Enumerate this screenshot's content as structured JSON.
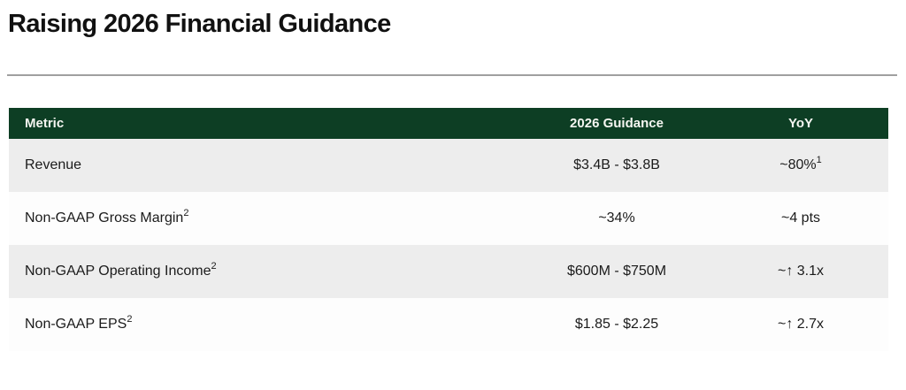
{
  "page": {
    "title": "Raising 2026 Financial Guidance"
  },
  "table": {
    "headers": [
      "Metric",
      "2026 Guidance",
      "YoY"
    ],
    "rows": [
      {
        "metric": "Revenue",
        "guidance": "$3.4B - $3.8B",
        "yoy": "~80%",
        "yoy_sup": "1"
      },
      {
        "metric": "Non-GAAP Gross Margin",
        "metric_sup": "2",
        "guidance": "~34%",
        "yoy": "~4 pts"
      },
      {
        "metric": "Non-GAAP Operating Income",
        "metric_sup": "2",
        "guidance": "$600M - $750M",
        "yoy": "~↑ 3.1x"
      },
      {
        "metric": "Non-GAAP EPS",
        "metric_sup": "2",
        "guidance": "$1.85 - $2.25",
        "yoy": "~↑ 2.7x"
      }
    ]
  },
  "colors": {
    "header_bg": "#0d3e24",
    "header_text": "#f5f6f1",
    "row_alt_bg": "#ededed",
    "row_bg": "#fdfdfd",
    "body_text": "#1b1b1b",
    "divider": "#a0a0a0"
  }
}
